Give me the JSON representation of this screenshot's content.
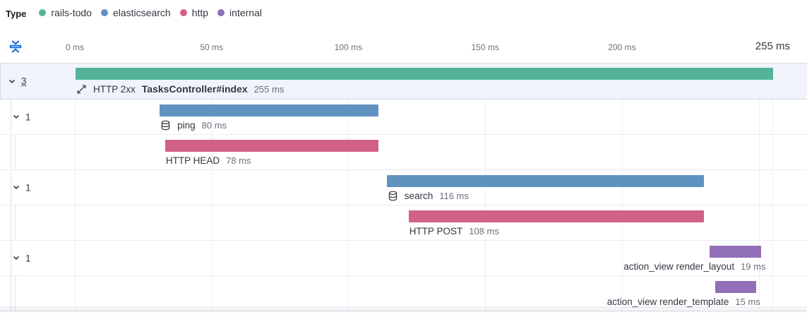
{
  "legend": {
    "title": "Type",
    "items": [
      {
        "label": "rails-todo",
        "color": "#54b399"
      },
      {
        "label": "elasticsearch",
        "color": "#6092c0"
      },
      {
        "label": "http",
        "color": "#d36086"
      },
      {
        "label": "internal",
        "color": "#9170b8"
      }
    ]
  },
  "axis": {
    "ticks": [
      {
        "ms": 0,
        "label": "0 ms"
      },
      {
        "ms": 50,
        "label": "50 ms"
      },
      {
        "ms": 100,
        "label": "100 ms"
      },
      {
        "ms": 150,
        "label": "150 ms"
      },
      {
        "ms": 200,
        "label": "200 ms"
      }
    ],
    "gridline_ms": [
      0,
      50,
      100,
      150,
      200,
      250,
      255
    ],
    "end_label": "255 ms",
    "total_ms": 255
  },
  "waterfall": {
    "rows": [
      {
        "kind": "transaction",
        "service_type": "rails-todo",
        "color": "#54b399",
        "start_ms": 0,
        "duration_ms": 255,
        "duration_label": "255 ms",
        "badge": "HTTP 2xx",
        "name": "TasksController#index",
        "name_bold": true,
        "icon": "transaction-icon",
        "toggle_count": "3",
        "toggle_underlined": true,
        "depth": 0,
        "selected": true,
        "label_align": "start"
      },
      {
        "kind": "span",
        "service_type": "elasticsearch",
        "color": "#6092c0",
        "start_ms": 31,
        "duration_ms": 80,
        "duration_label": "80 ms",
        "name": "ping",
        "icon": "database-icon",
        "toggle_count": "1",
        "depth": 1,
        "selected": false,
        "label_align": "start"
      },
      {
        "kind": "span",
        "service_type": "http",
        "color": "#d36086",
        "start_ms": 33,
        "duration_ms": 78,
        "duration_label": "78 ms",
        "name": "HTTP HEAD",
        "depth": 2,
        "selected": false,
        "label_align": "start"
      },
      {
        "kind": "span",
        "service_type": "elasticsearch",
        "color": "#6092c0",
        "start_ms": 114,
        "duration_ms": 116,
        "duration_label": "116 ms",
        "name": "search",
        "icon": "database-icon",
        "toggle_count": "1",
        "depth": 1,
        "selected": false,
        "label_align": "start"
      },
      {
        "kind": "span",
        "service_type": "http",
        "color": "#d36086",
        "start_ms": 122,
        "duration_ms": 108,
        "duration_label": "108 ms",
        "name": "HTTP POST",
        "depth": 2,
        "selected": false,
        "label_align": "start"
      },
      {
        "kind": "span",
        "service_type": "internal",
        "color": "#9170b8",
        "start_ms": 232,
        "duration_ms": 19,
        "duration_label": "19 ms",
        "name": "action_view render_layout",
        "toggle_count": "1",
        "depth": 1,
        "selected": false,
        "label_align": "end"
      },
      {
        "kind": "span",
        "service_type": "internal",
        "color": "#9170b8",
        "start_ms": 234,
        "duration_ms": 15,
        "duration_label": "15 ms",
        "name": "action_view render_template",
        "depth": 2,
        "selected": false,
        "label_align": "end"
      }
    ]
  },
  "chart_data": {
    "type": "bar",
    "subtype": "trace-waterfall",
    "orientation": "horizontal",
    "unit": "ms",
    "xlim": [
      0,
      255
    ],
    "x_ticks_ms": [
      0,
      50,
      100,
      150,
      200
    ],
    "total_label": "255 ms",
    "legend": [
      "rails-todo",
      "elasticsearch",
      "http",
      "internal"
    ],
    "spans": [
      {
        "name": "HTTP 2xx TasksController#index",
        "type": "rails-todo",
        "start_ms": 0,
        "duration_ms": 255
      },
      {
        "name": "ping",
        "type": "elasticsearch",
        "start_ms": 31,
        "duration_ms": 80
      },
      {
        "name": "HTTP HEAD",
        "type": "http",
        "start_ms": 33,
        "duration_ms": 78
      },
      {
        "name": "search",
        "type": "elasticsearch",
        "start_ms": 114,
        "duration_ms": 116
      },
      {
        "name": "HTTP POST",
        "type": "http",
        "start_ms": 122,
        "duration_ms": 108
      },
      {
        "name": "action_view render_layout",
        "type": "internal",
        "start_ms": 232,
        "duration_ms": 19
      },
      {
        "name": "action_view render_template",
        "type": "internal",
        "start_ms": 234,
        "duration_ms": 15
      }
    ]
  },
  "icons": {
    "fold": "fold-icon",
    "transaction": "transaction-icon",
    "database": "database-icon",
    "chevron": "chevron-down-icon"
  }
}
